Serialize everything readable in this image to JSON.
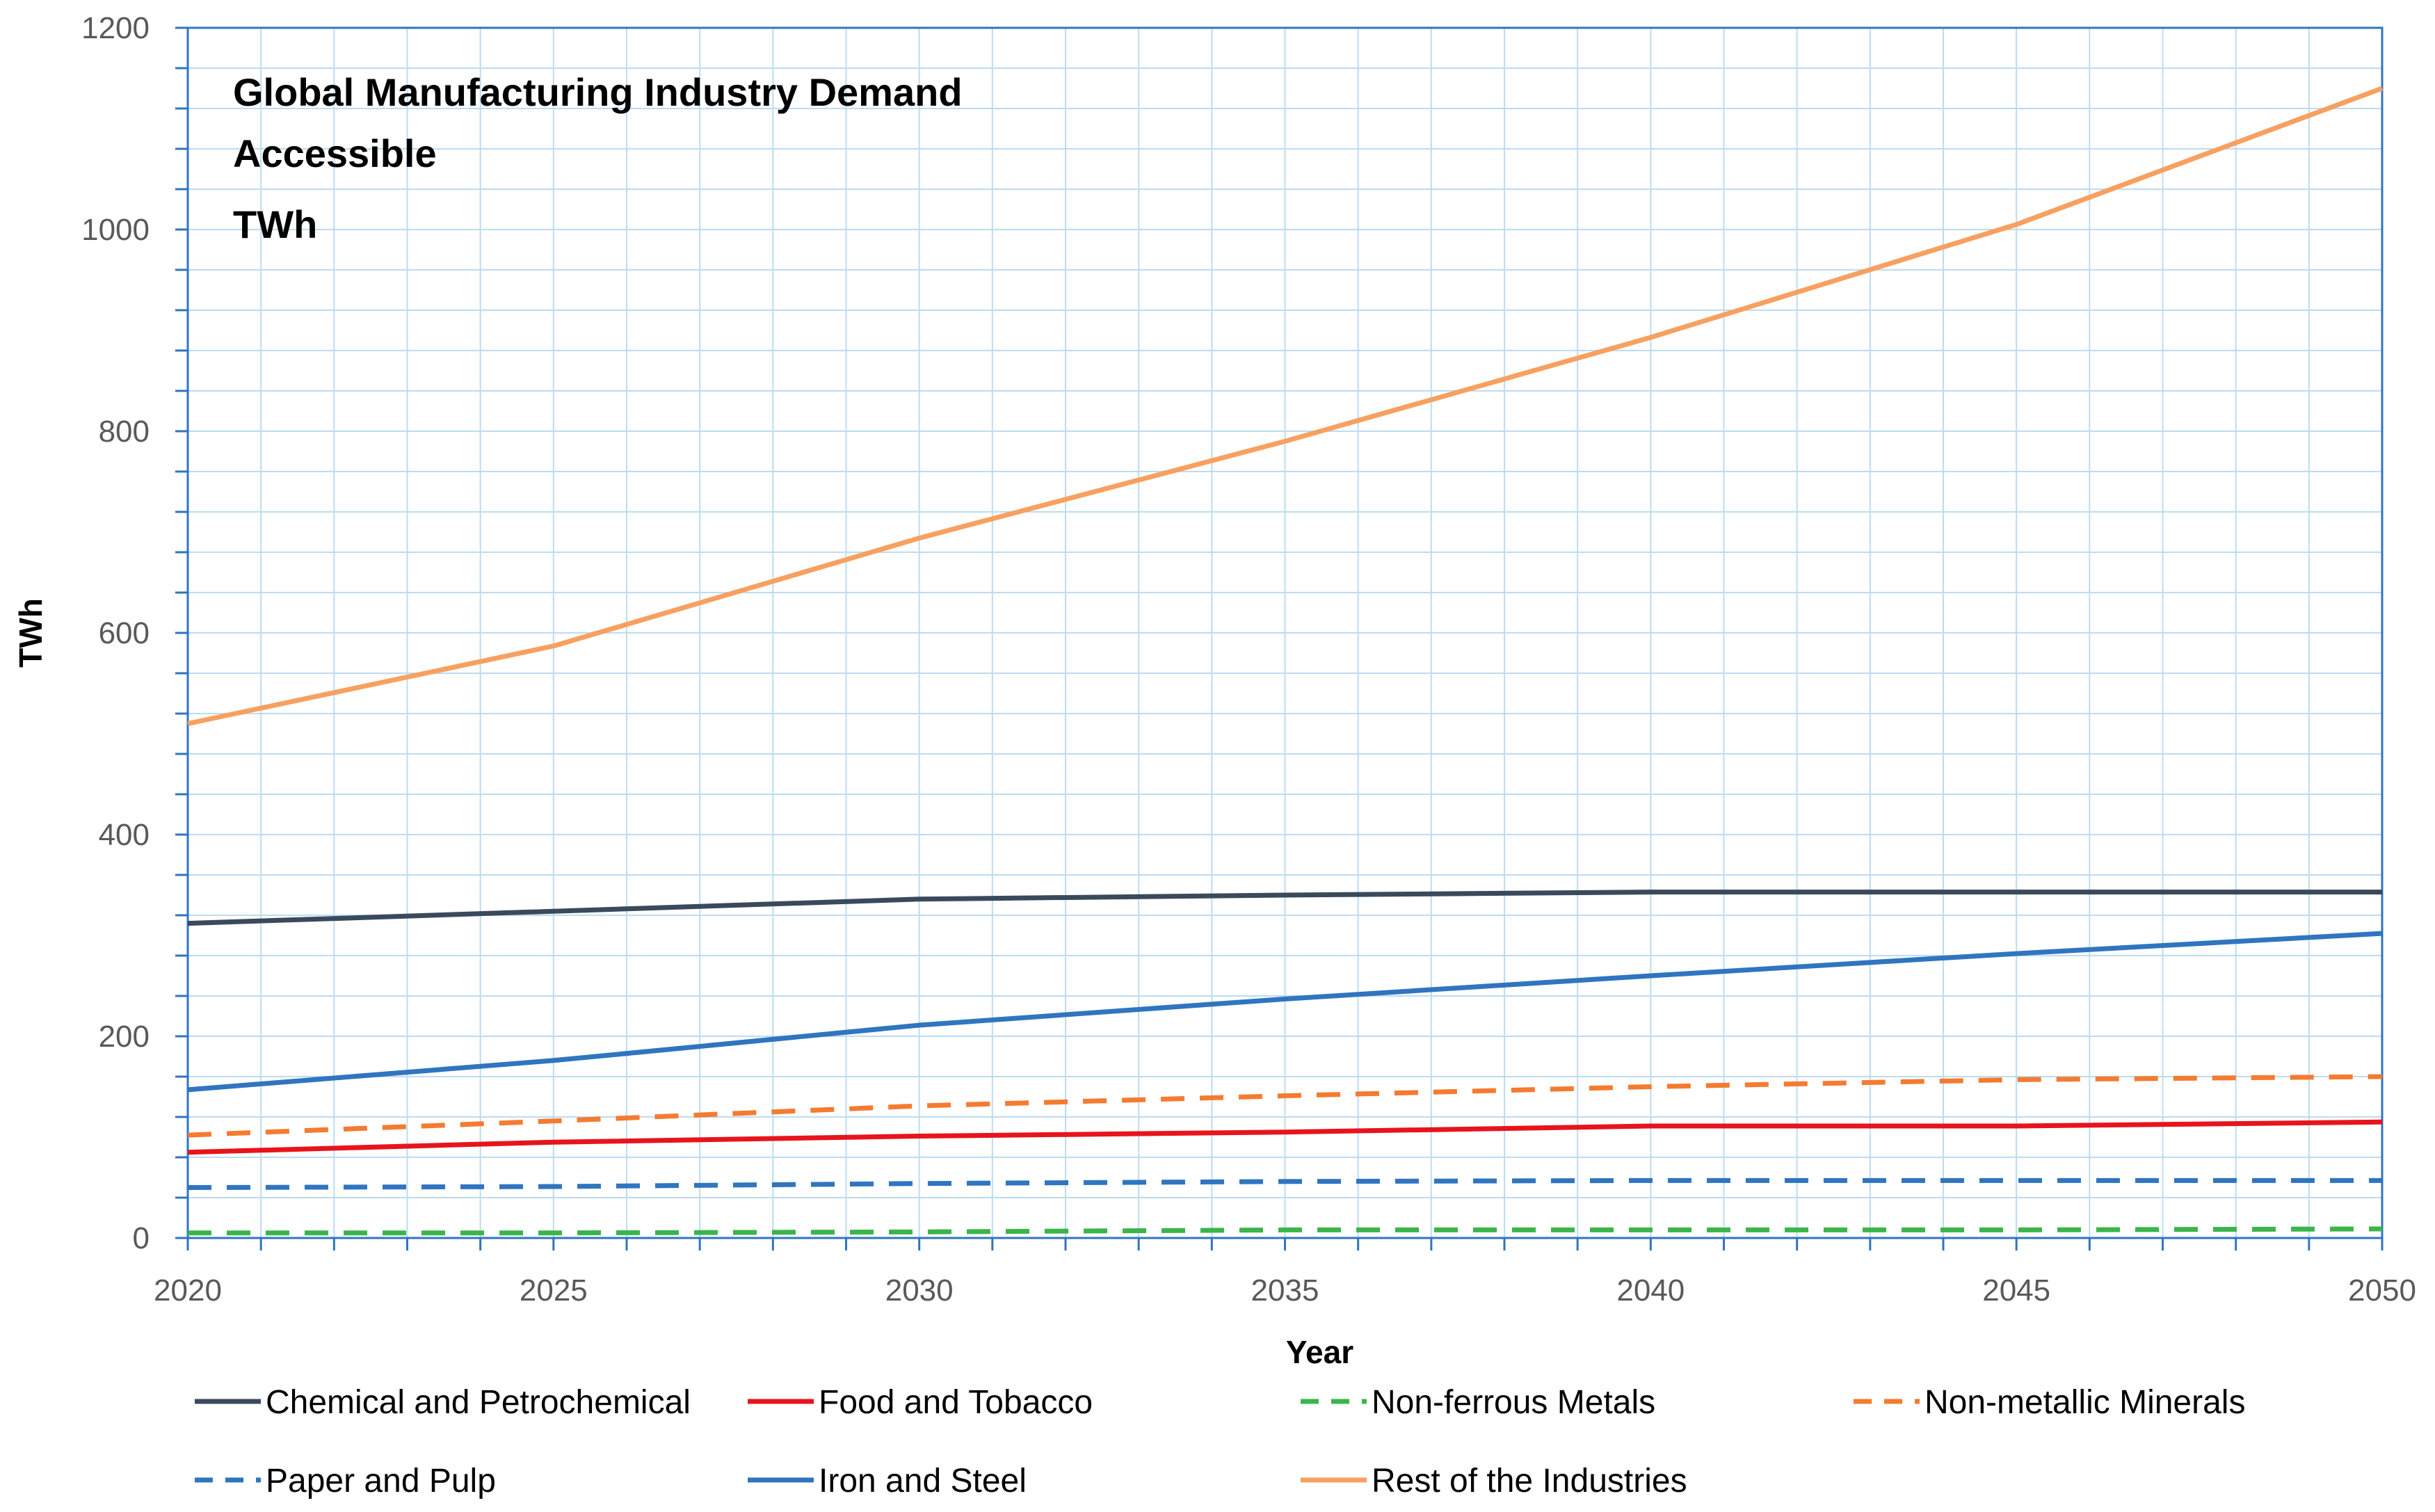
{
  "chart_data": {
    "type": "line",
    "title_lines": [
      "Global Manufacturing Industry Demand",
      "Accessible",
      "TWh"
    ],
    "xlabel": "Year",
    "ylabel": "TWh",
    "xlim": [
      2020,
      2050
    ],
    "ylim": [
      0,
      1200
    ],
    "x_ticks": [
      2020,
      2025,
      2030,
      2035,
      2040,
      2045,
      2050
    ],
    "y_ticks": [
      0,
      200,
      400,
      600,
      800,
      1000,
      1200
    ],
    "grid": true,
    "legend_position": "bottom",
    "x": [
      2020,
      2025,
      2030,
      2035,
      2040,
      2045,
      2050
    ],
    "series": [
      {
        "name": "Chemical and Petrochemical",
        "color": "#3a4a5c",
        "dash": "solid",
        "values": [
          312,
          324,
          336,
          340,
          343,
          343,
          343
        ]
      },
      {
        "name": "Food and Tobacco",
        "color": "#e8141c",
        "dash": "solid",
        "values": [
          85,
          95,
          101,
          105,
          111,
          111,
          115
        ]
      },
      {
        "name": "Non-ferrous Metals",
        "color": "#3ab54a",
        "dash": "dashed",
        "values": [
          5,
          5,
          6,
          8,
          8,
          8,
          9
        ]
      },
      {
        "name": "Non-metallic Minerals",
        "color": "#f47b30",
        "dash": "dashed",
        "values": [
          102,
          116,
          131,
          141,
          150,
          157,
          160
        ]
      },
      {
        "name": "Paper and Pulp",
        "color": "#2f75c0",
        "dash": "dashed",
        "values": [
          50,
          51,
          54,
          56,
          57,
          57,
          57
        ]
      },
      {
        "name": "Iron and Steel",
        "color": "#2f75c0",
        "dash": "solid",
        "values": [
          147,
          176,
          211,
          237,
          260,
          282,
          302
        ]
      },
      {
        "name": "Rest of the Industries",
        "color": "#f8a060",
        "dash": "solid",
        "values": [
          510,
          587,
          694,
          790,
          893,
          1005,
          1140
        ]
      }
    ]
  }
}
